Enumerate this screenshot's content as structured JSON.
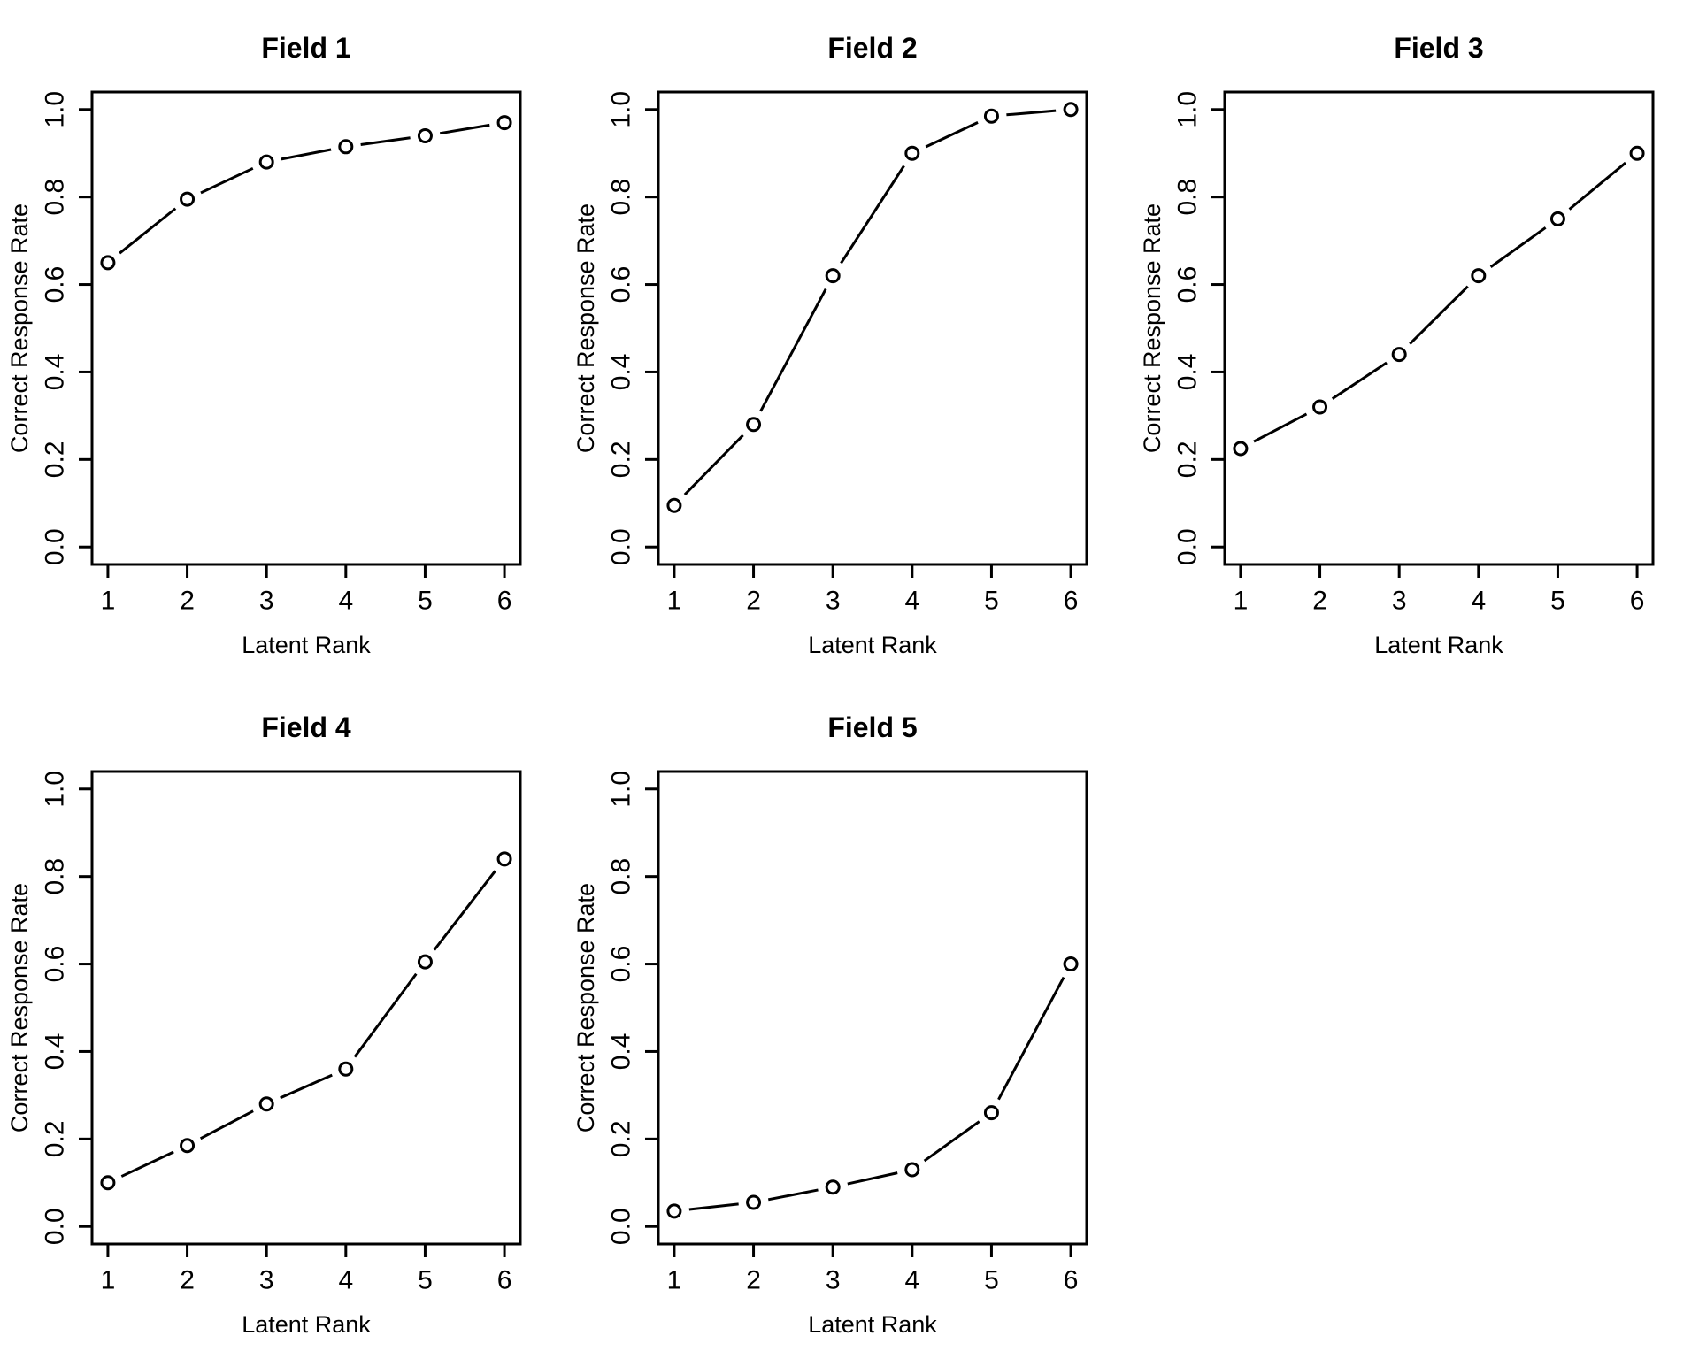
{
  "page": {
    "background": "#ffffff",
    "foreground": "#000000"
  },
  "layout": {
    "rows": 2,
    "cols": 3,
    "grid_lines": false,
    "legend": "none",
    "marker_style": "open-circle",
    "empty_cells": 1
  },
  "chart_data": [
    {
      "type": "line",
      "title": "Field 1",
      "xlabel": "Latent Rank",
      "ylabel": "Correct Response Rate",
      "x": [
        1,
        2,
        3,
        4,
        5,
        6
      ],
      "y": [
        0.65,
        0.795,
        0.88,
        0.915,
        0.94,
        0.97
      ],
      "xticks": [
        1,
        2,
        3,
        4,
        5,
        6
      ],
      "yticks": [
        0.0,
        0.2,
        0.4,
        0.6,
        0.8,
        1.0
      ],
      "xlim": [
        1,
        6
      ],
      "ylim": [
        0,
        1
      ],
      "line_color": "#000000"
    },
    {
      "type": "line",
      "title": "Field 2",
      "xlabel": "Latent Rank",
      "ylabel": "Correct Response Rate",
      "x": [
        1,
        2,
        3,
        4,
        5,
        6
      ],
      "y": [
        0.095,
        0.28,
        0.62,
        0.9,
        0.985,
        1.0
      ],
      "xticks": [
        1,
        2,
        3,
        4,
        5,
        6
      ],
      "yticks": [
        0.0,
        0.2,
        0.4,
        0.6,
        0.8,
        1.0
      ],
      "xlim": [
        1,
        6
      ],
      "ylim": [
        0,
        1
      ],
      "line_color": "#000000"
    },
    {
      "type": "line",
      "title": "Field 3",
      "xlabel": "Latent Rank",
      "ylabel": "Correct Response Rate",
      "x": [
        1,
        2,
        3,
        4,
        5,
        6
      ],
      "y": [
        0.225,
        0.32,
        0.44,
        0.62,
        0.75,
        0.9
      ],
      "xticks": [
        1,
        2,
        3,
        4,
        5,
        6
      ],
      "yticks": [
        0.0,
        0.2,
        0.4,
        0.6,
        0.8,
        1.0
      ],
      "xlim": [
        1,
        6
      ],
      "ylim": [
        0,
        1
      ],
      "line_color": "#000000"
    },
    {
      "type": "line",
      "title": "Field 4",
      "xlabel": "Latent Rank",
      "ylabel": "Correct Response Rate",
      "x": [
        1,
        2,
        3,
        4,
        5,
        6
      ],
      "y": [
        0.1,
        0.185,
        0.28,
        0.36,
        0.605,
        0.84
      ],
      "xticks": [
        1,
        2,
        3,
        4,
        5,
        6
      ],
      "yticks": [
        0.0,
        0.2,
        0.4,
        0.6,
        0.8,
        1.0
      ],
      "xlim": [
        1,
        6
      ],
      "ylim": [
        0,
        1
      ],
      "line_color": "#000000"
    },
    {
      "type": "line",
      "title": "Field 5",
      "xlabel": "Latent Rank",
      "ylabel": "Correct Response Rate",
      "x": [
        1,
        2,
        3,
        4,
        5,
        6
      ],
      "y": [
        0.035,
        0.055,
        0.09,
        0.13,
        0.26,
        0.6
      ],
      "xticks": [
        1,
        2,
        3,
        4,
        5,
        6
      ],
      "yticks": [
        0.0,
        0.2,
        0.4,
        0.6,
        0.8,
        1.0
      ],
      "xlim": [
        1,
        6
      ],
      "ylim": [
        0,
        1
      ],
      "line_color": "#000000"
    }
  ]
}
